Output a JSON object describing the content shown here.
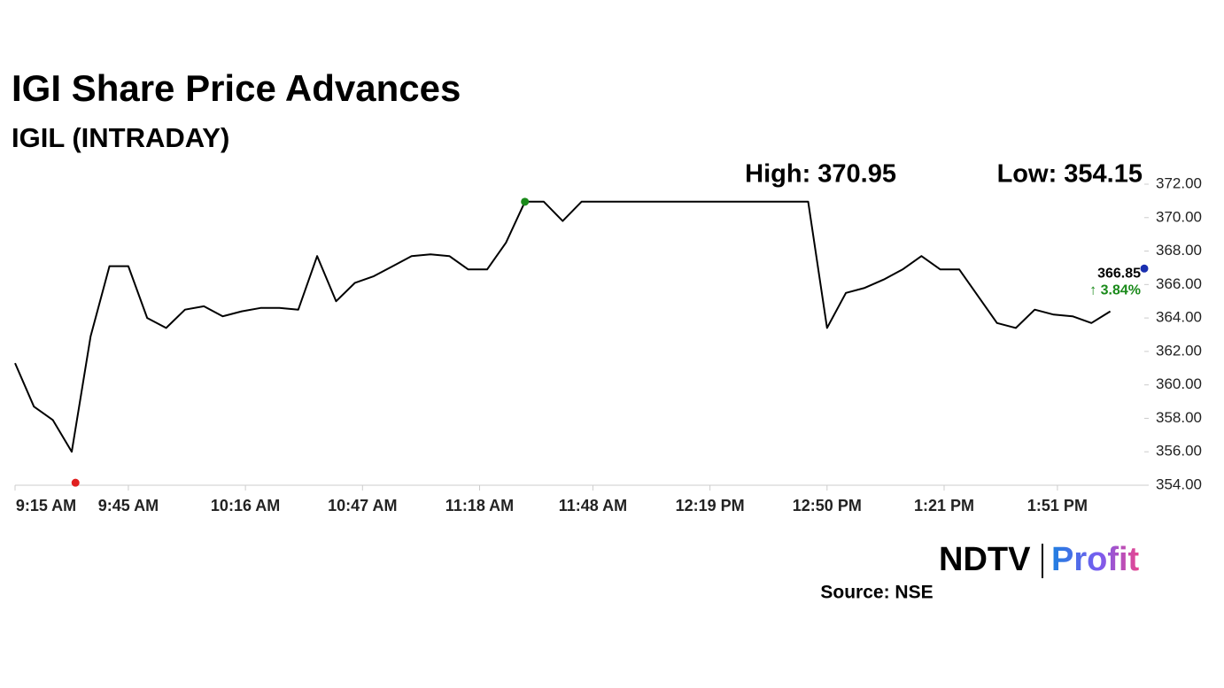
{
  "chart_data": {
    "type": "line",
    "title": "IGI Share Price Advances",
    "subtitle": "IGIL (INTRADAY)",
    "high_label": "High: 370.95",
    "low_label": "Low: 354.15",
    "high": {
      "x": "11:30 AM",
      "value": 370.95
    },
    "low": {
      "x": "9:31 AM",
      "value": 354.15
    },
    "last_price": 366.85,
    "change_label": "↑ 3.84%",
    "color": "#000000",
    "x": [
      "9:15 AM",
      "9:20 AM",
      "9:25 AM",
      "9:30 AM",
      "9:35 AM",
      "9:40 AM",
      "9:45 AM",
      "9:50 AM",
      "9:55 AM",
      "10:00 AM",
      "10:05 AM",
      "10:10 AM",
      "10:15 AM",
      "10:20 AM",
      "10:25 AM",
      "10:30 AM",
      "10:35 AM",
      "10:40 AM",
      "10:45 AM",
      "10:50 AM",
      "10:55 AM",
      "11:00 AM",
      "11:05 AM",
      "11:10 AM",
      "11:15 AM",
      "11:20 AM",
      "11:25 AM",
      "11:30 AM",
      "11:35 AM",
      "11:40 AM",
      "11:45 AM",
      "11:50 AM",
      "11:55 AM",
      "12:00 PM",
      "12:05 PM",
      "12:10 PM",
      "12:15 PM",
      "12:20 PM",
      "12:25 PM",
      "12:30 PM",
      "12:35 PM",
      "12:40 PM",
      "12:45 PM",
      "12:50 PM",
      "12:55 PM",
      "1:00 PM",
      "1:05 PM",
      "1:10 PM",
      "1:15 PM",
      "1:20 PM",
      "1:25 PM",
      "1:30 PM",
      "1:35 PM",
      "1:40 PM",
      "1:45 PM",
      "1:50 PM",
      "1:55 PM",
      "2:00 PM",
      "2:05 PM"
    ],
    "values": [
      361.3,
      358.7,
      357.9,
      356.0,
      362.9,
      367.1,
      367.1,
      364.0,
      363.4,
      364.5,
      364.7,
      364.1,
      364.4,
      364.6,
      364.6,
      364.5,
      367.7,
      365.0,
      366.1,
      366.5,
      367.1,
      367.7,
      367.8,
      367.7,
      366.9,
      366.9,
      368.5,
      370.95,
      370.95,
      369.8,
      370.95,
      370.95,
      370.95,
      370.95,
      370.95,
      370.95,
      370.95,
      370.95,
      370.95,
      370.95,
      370.95,
      370.95,
      370.95,
      363.4,
      365.5,
      365.8,
      366.3,
      366.9,
      367.7,
      366.9,
      366.9,
      365.3,
      363.7,
      363.4,
      364.5,
      364.2,
      364.1,
      363.7,
      364.4
    ],
    "xlim": [
      "9:15 AM",
      "2:14 PM"
    ],
    "xticks": [
      "9:15 AM",
      "9:45 AM",
      "10:16 AM",
      "10:47 AM",
      "11:18 AM",
      "11:48 AM",
      "12:19 PM",
      "12:50 PM",
      "1:21 PM",
      "1:51 PM"
    ],
    "ylim": [
      354,
      372
    ],
    "yticks": [
      {
        "value": 354,
        "label": "354.00"
      },
      {
        "value": 356,
        "label": "356.00"
      },
      {
        "value": 358,
        "label": "358.00"
      },
      {
        "value": 360,
        "label": "360.00"
      },
      {
        "value": 362,
        "label": "362.00"
      },
      {
        "value": 364,
        "label": "364.00"
      },
      {
        "value": 366,
        "label": "366.00"
      },
      {
        "value": 368,
        "label": "368.00"
      },
      {
        "value": 370,
        "label": "370.00"
      },
      {
        "value": 372,
        "label": "372.00"
      }
    ]
  },
  "logo": {
    "brand": "NDTV",
    "product": "Profit"
  },
  "source": "Source: NSE"
}
